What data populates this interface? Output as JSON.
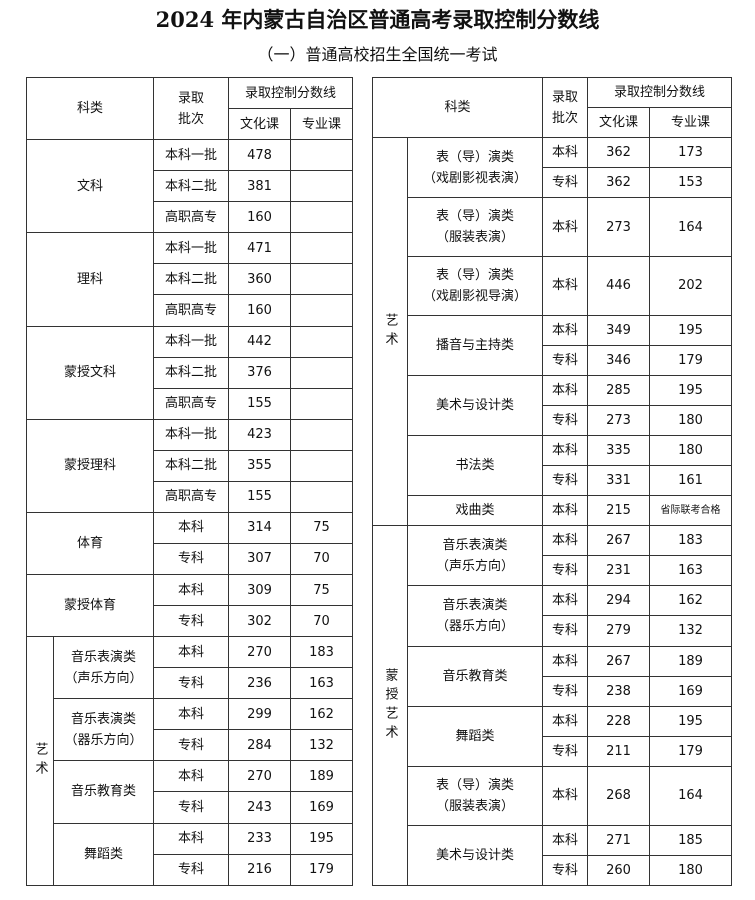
{
  "header": {
    "title": "2024 年内蒙古自治区普通高考录取控制分数线",
    "subtitle": "（一）普通高校招生全国统一考试"
  },
  "left_table": {
    "header": {
      "category": "科类",
      "batch": [
        "录取",
        "批次"
      ],
      "score_line": "录取控制分数线",
      "culture": "文化课",
      "major": "专业课"
    },
    "groups": [
      {
        "name": "文科",
        "rows": [
          {
            "batch": "本科一批",
            "culture": 478
          },
          {
            "batch": "本科二批",
            "culture": 381
          },
          {
            "batch": "高职高专",
            "culture": 160
          }
        ]
      },
      {
        "name": "理科",
        "rows": [
          {
            "batch": "本科一批",
            "culture": 471
          },
          {
            "batch": "本科二批",
            "culture": 360
          },
          {
            "batch": "高职高专",
            "culture": 160
          }
        ]
      },
      {
        "name": "蒙授文科",
        "rows": [
          {
            "batch": "本科一批",
            "culture": 442
          },
          {
            "batch": "本科二批",
            "culture": 376
          },
          {
            "batch": "高职高专",
            "culture": 155
          }
        ]
      },
      {
        "name": "蒙授理科",
        "rows": [
          {
            "batch": "本科一批",
            "culture": 423
          },
          {
            "batch": "本科二批",
            "culture": 355
          },
          {
            "batch": "高职高专",
            "culture": 155
          }
        ]
      },
      {
        "name": "体育",
        "rows": [
          {
            "batch": "本科",
            "culture": 314,
            "major": 75
          },
          {
            "batch": "专科",
            "culture": 307,
            "major": 70
          }
        ]
      },
      {
        "name": "蒙授体育",
        "rows": [
          {
            "batch": "本科",
            "culture": 309,
            "major": 75
          },
          {
            "batch": "专科",
            "culture": 302,
            "major": 70
          }
        ]
      },
      {
        "name": "艺术",
        "subgroups": [
          {
            "name": [
              "音乐表演类",
              "（声乐方向）"
            ],
            "rows": [
              {
                "batch": "本科",
                "culture": 270,
                "major": 183
              },
              {
                "batch": "专科",
                "culture": 236,
                "major": 163
              }
            ]
          },
          {
            "name": [
              "音乐表演类",
              "（器乐方向）"
            ],
            "rows": [
              {
                "batch": "本科",
                "culture": 299,
                "major": 162
              },
              {
                "batch": "专科",
                "culture": 284,
                "major": 132
              }
            ]
          },
          {
            "name": [
              "音乐教育类"
            ],
            "rows": [
              {
                "batch": "本科",
                "culture": 270,
                "major": 189
              },
              {
                "batch": "专科",
                "culture": 243,
                "major": 169
              }
            ]
          },
          {
            "name": [
              "舞蹈类"
            ],
            "rows": [
              {
                "batch": "本科",
                "culture": 233,
                "major": 195
              },
              {
                "batch": "专科",
                "culture": 216,
                "major": 179
              }
            ]
          }
        ]
      }
    ]
  },
  "right_table": {
    "header": {
      "category": "科类",
      "batch": [
        "录取",
        "批次"
      ],
      "score_line": "录取控制分数线",
      "culture": "文化课",
      "major": "专业课"
    },
    "groups": [
      {
        "name": "艺术",
        "subgroups": [
          {
            "name": [
              "表（导）演类",
              "（戏剧影视表演）"
            ],
            "rows": [
              {
                "batch": "本科",
                "culture": 362,
                "major": 173
              },
              {
                "batch": "专科",
                "culture": 362,
                "major": 153
              }
            ]
          },
          {
            "name": [
              "表（导）演类",
              "（服装表演）"
            ],
            "rows": [
              {
                "batch": "本科",
                "culture": 273,
                "major": 164
              }
            ]
          },
          {
            "name": [
              "表（导）演类",
              "（戏剧影视导演）"
            ],
            "rows": [
              {
                "batch": "本科",
                "culture": 446,
                "major": 202
              }
            ]
          },
          {
            "name": [
              "播音与主持类"
            ],
            "rows": [
              {
                "batch": "本科",
                "culture": 349,
                "major": 195
              },
              {
                "batch": "专科",
                "culture": 346,
                "major": 179
              }
            ]
          },
          {
            "name": [
              "美术与设计类"
            ],
            "rows": [
              {
                "batch": "本科",
                "culture": 285,
                "major": 195
              },
              {
                "batch": "专科",
                "culture": 273,
                "major": 180
              }
            ]
          },
          {
            "name": [
              "书法类"
            ],
            "rows": [
              {
                "batch": "本科",
                "culture": 335,
                "major": 180
              },
              {
                "batch": "专科",
                "culture": 331,
                "major": 161
              }
            ]
          },
          {
            "name": [
              "戏曲类"
            ],
            "rows": [
              {
                "batch": "本科",
                "culture": 215,
                "major": "省际联考合格"
              }
            ]
          }
        ]
      },
      {
        "name": "蒙授艺术",
        "subgroups": [
          {
            "name": [
              "音乐表演类",
              "（声乐方向）"
            ],
            "rows": [
              {
                "batch": "本科",
                "culture": 267,
                "major": 183
              },
              {
                "batch": "专科",
                "culture": 231,
                "major": 163
              }
            ]
          },
          {
            "name": [
              "音乐表演类",
              "（器乐方向）"
            ],
            "rows": [
              {
                "batch": "本科",
                "culture": 294,
                "major": 162
              },
              {
                "batch": "专科",
                "culture": 279,
                "major": 132
              }
            ]
          },
          {
            "name": [
              "音乐教育类"
            ],
            "rows": [
              {
                "batch": "本科",
                "culture": 267,
                "major": 189
              },
              {
                "batch": "专科",
                "culture": 238,
                "major": 169
              }
            ]
          },
          {
            "name": [
              "舞蹈类"
            ],
            "rows": [
              {
                "batch": "本科",
                "culture": 228,
                "major": 195
              },
              {
                "batch": "专科",
                "culture": 211,
                "major": 179
              }
            ]
          },
          {
            "name": [
              "表（导）演类",
              "（服装表演）"
            ],
            "rows": [
              {
                "batch": "本科",
                "culture": 268,
                "major": 164
              }
            ]
          },
          {
            "name": [
              "美术与设计类"
            ],
            "rows": [
              {
                "batch": "本科",
                "culture": 271,
                "major": 185
              },
              {
                "batch": "专科",
                "culture": 260,
                "major": 180
              }
            ]
          }
        ]
      }
    ]
  }
}
